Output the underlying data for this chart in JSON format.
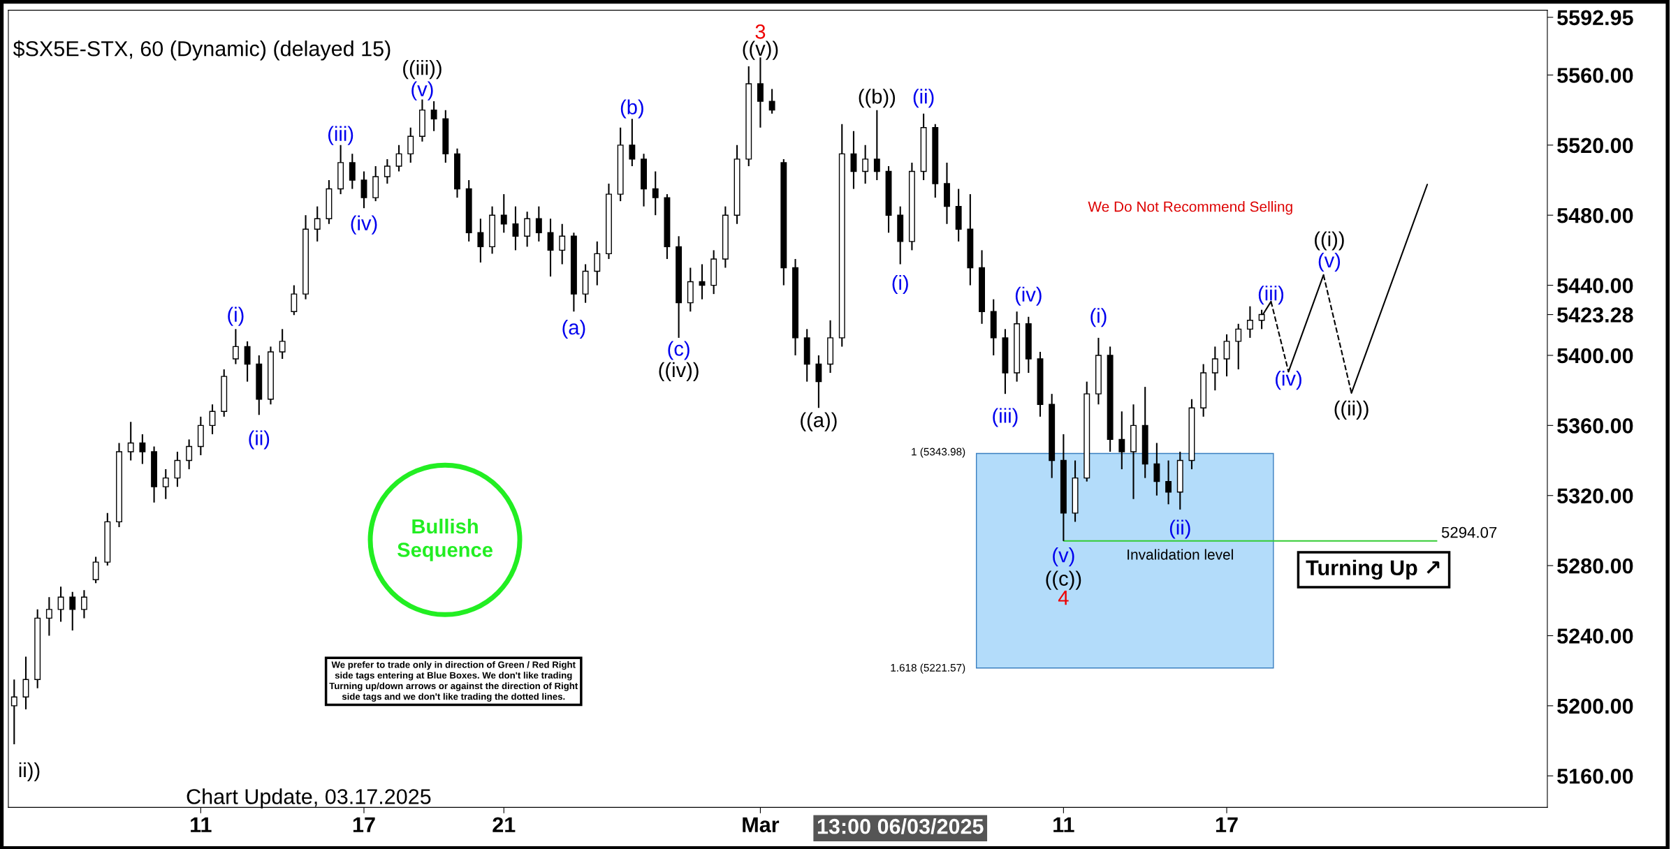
{
  "chart_data": {
    "type": "candlestick",
    "title": "$SX5E-STX, 60 (Dynamic) (delayed 15)",
    "categories": [
      null,
      null,
      null,
      null,
      null,
      null,
      null,
      null,
      null,
      null,
      null,
      null,
      null,
      null,
      null,
      null,
      "11",
      null,
      null,
      null,
      null,
      null,
      null,
      null,
      null,
      null,
      null,
      null,
      null,
      null,
      "17",
      null,
      null,
      null,
      null,
      null,
      null,
      null,
      null,
      null,
      null,
      null,
      "21",
      null,
      null,
      null,
      null,
      null,
      null,
      null,
      null,
      null,
      null,
      null,
      null,
      null,
      null,
      null,
      null,
      null,
      null,
      null,
      null,
      null,
      "Mar",
      null,
      null,
      null,
      null,
      null,
      null,
      null,
      null,
      null,
      null,
      null,
      null,
      null,
      null,
      null,
      null,
      null,
      null,
      null,
      null,
      null,
      null,
      null,
      null,
      null,
      "11",
      null,
      null,
      null,
      null,
      null,
      null,
      null,
      null,
      null,
      null,
      null,
      null,
      null,
      "17",
      null,
      null,
      null,
      null,
      null,
      null,
      null,
      null,
      null,
      null,
      null,
      null,
      null,
      null,
      null,
      null,
      null,
      null,
      null,
      null,
      null,
      null,
      null,
      null,
      null,
      null,
      null
    ],
    "ohlc": [
      [
        5200,
        5215,
        5178,
        5205
      ],
      [
        5205,
        5228,
        5198,
        5215
      ],
      [
        5215,
        5255,
        5210,
        5250
      ],
      [
        5250,
        5262,
        5240,
        5255
      ],
      [
        5255,
        5268,
        5248,
        5262
      ],
      [
        5262,
        5265,
        5243,
        5255
      ],
      [
        5255,
        5266,
        5250,
        5262
      ],
      [
        5272,
        5285,
        5270,
        5282
      ],
      [
        5282,
        5310,
        5280,
        5305
      ],
      [
        5305,
        5350,
        5302,
        5345
      ],
      [
        5345,
        5362,
        5340,
        5350
      ],
      [
        5350,
        5355,
        5338,
        5345
      ],
      [
        5345,
        5348,
        5316,
        5325
      ],
      [
        5325,
        5335,
        5318,
        5330
      ],
      [
        5330,
        5345,
        5325,
        5340
      ],
      [
        5340,
        5352,
        5335,
        5348
      ],
      [
        5348,
        5365,
        5343,
        5360
      ],
      [
        5360,
        5372,
        5355,
        5368
      ],
      [
        5368,
        5392,
        5365,
        5388
      ],
      [
        5398,
        5415,
        5395,
        5405
      ],
      [
        5405,
        5408,
        5385,
        5395
      ],
      [
        5395,
        5400,
        5366,
        5375
      ],
      [
        5375,
        5405,
        5372,
        5402
      ],
      [
        5402,
        5415,
        5398,
        5408
      ],
      [
        5425,
        5440,
        5423,
        5435
      ],
      [
        5435,
        5480,
        5432,
        5472
      ],
      [
        5472,
        5485,
        5465,
        5478
      ],
      [
        5478,
        5500,
        5475,
        5495
      ],
      [
        5495,
        5520,
        5492,
        5510
      ],
      [
        5510,
        5515,
        5495,
        5500
      ],
      [
        5500,
        5505,
        5484,
        5490
      ],
      [
        5490,
        5508,
        5488,
        5502
      ],
      [
        5502,
        5512,
        5498,
        5508
      ],
      [
        5508,
        5520,
        5505,
        5515
      ],
      [
        5515,
        5530,
        5510,
        5525
      ],
      [
        5525,
        5546,
        5522,
        5540
      ],
      [
        5540,
        5545,
        5528,
        5535
      ],
      [
        5535,
        5540,
        5510,
        5515
      ],
      [
        5515,
        5518,
        5490,
        5495
      ],
      [
        5495,
        5500,
        5465,
        5470
      ],
      [
        5470,
        5478,
        5453,
        5462
      ],
      [
        5462,
        5485,
        5458,
        5480
      ],
      [
        5480,
        5492,
        5470,
        5475
      ],
      [
        5475,
        5485,
        5460,
        5468
      ],
      [
        5468,
        5482,
        5462,
        5478
      ],
      [
        5478,
        5485,
        5465,
        5470
      ],
      [
        5470,
        5478,
        5445,
        5460
      ],
      [
        5460,
        5475,
        5452,
        5468
      ],
      [
        5468,
        5470,
        5425,
        5435
      ],
      [
        5435,
        5452,
        5430,
        5448
      ],
      [
        5448,
        5465,
        5440,
        5458
      ],
      [
        5458,
        5498,
        5455,
        5492
      ],
      [
        5492,
        5530,
        5488,
        5520
      ],
      [
        5520,
        5535,
        5508,
        5512
      ],
      [
        5512,
        5515,
        5485,
        5495
      ],
      [
        5495,
        5505,
        5480,
        5490
      ],
      [
        5490,
        5492,
        5455,
        5462
      ],
      [
        5462,
        5468,
        5410,
        5430
      ],
      [
        5430,
        5450,
        5425,
        5442
      ],
      [
        5442,
        5452,
        5432,
        5440
      ],
      [
        5440,
        5460,
        5435,
        5455
      ],
      [
        5455,
        5485,
        5450,
        5480
      ],
      [
        5480,
        5520,
        5475,
        5512
      ],
      [
        5512,
        5565,
        5508,
        5555
      ],
      [
        5555,
        5570,
        5530,
        5545
      ],
      [
        5545,
        5552,
        5538,
        5540
      ],
      [
        5510,
        5512,
        5440,
        5450
      ],
      [
        5450,
        5455,
        5400,
        5410
      ],
      [
        5410,
        5415,
        5385,
        5395
      ],
      [
        5395,
        5400,
        5370,
        5385
      ],
      [
        5395,
        5420,
        5390,
        5410
      ],
      [
        5410,
        5532,
        5405,
        5515
      ],
      [
        5515,
        5528,
        5495,
        5505
      ],
      [
        5505,
        5520,
        5498,
        5512
      ],
      [
        5512,
        5540,
        5500,
        5505
      ],
      [
        5505,
        5508,
        5470,
        5480
      ],
      [
        5480,
        5485,
        5452,
        5465
      ],
      [
        5465,
        5510,
        5460,
        5505
      ],
      [
        5505,
        5538,
        5500,
        5530
      ],
      [
        5530,
        5532,
        5490,
        5498
      ],
      [
        5498,
        5510,
        5475,
        5485
      ],
      [
        5485,
        5495,
        5465,
        5472
      ],
      [
        5472,
        5492,
        5440,
        5450
      ],
      [
        5450,
        5460,
        5418,
        5425
      ],
      [
        5425,
        5432,
        5400,
        5410
      ],
      [
        5410,
        5415,
        5378,
        5390
      ],
      [
        5390,
        5425,
        5385,
        5418
      ],
      [
        5418,
        5422,
        5390,
        5398
      ],
      [
        5398,
        5402,
        5365,
        5372
      ],
      [
        5372,
        5378,
        5330,
        5340
      ],
      [
        5340,
        5355,
        5294.07,
        5310
      ],
      [
        5310,
        5340,
        5305,
        5330
      ],
      [
        5330,
        5385,
        5328,
        5378
      ],
      [
        5378,
        5410,
        5372,
        5400
      ],
      [
        5400,
        5405,
        5345,
        5352
      ],
      [
        5352,
        5368,
        5335,
        5345
      ],
      [
        5345,
        5372,
        5318,
        5360
      ],
      [
        5360,
        5382,
        5330,
        5338
      ],
      [
        5338,
        5350,
        5320,
        5328
      ],
      [
        5328,
        5340,
        5315,
        5322
      ],
      [
        5322,
        5345,
        5312,
        5340
      ],
      [
        5340,
        5375,
        5335,
        5370
      ],
      [
        5370,
        5395,
        5365,
        5390
      ],
      [
        5390,
        5405,
        5380,
        5398
      ],
      [
        5398,
        5412,
        5388,
        5408
      ],
      [
        5408,
        5418,
        5392,
        5415
      ],
      [
        5415,
        5428,
        5410,
        5420
      ],
      [
        5420,
        5426,
        5415,
        5423.28
      ],
      null,
      null,
      null,
      null,
      null,
      null,
      null,
      null,
      null,
      null,
      null,
      null,
      null,
      null,
      null,
      null,
      null,
      null,
      null,
      null,
      null,
      null,
      null,
      null
    ],
    "color": "#000000",
    "ylim": [
      5142,
      5597
    ],
    "yticks": [
      {
        "value": 5160,
        "label": "5160.00"
      },
      {
        "value": 5200,
        "label": "5200.00"
      },
      {
        "value": 5240,
        "label": "5240.00"
      },
      {
        "value": 5280,
        "label": "5280.00"
      },
      {
        "value": 5320,
        "label": "5320.00"
      },
      {
        "value": 5360,
        "label": "5360.00"
      },
      {
        "value": 5400,
        "label": "5400.00"
      },
      {
        "value": 5440,
        "label": "5440.00"
      },
      {
        "value": 5480,
        "label": "5480.00"
      },
      {
        "value": 5520,
        "label": "5520.00"
      },
      {
        "value": 5560,
        "label": "5560.00"
      },
      {
        "value": 5423.28,
        "label": "5423.28"
      },
      {
        "value": 5592.95,
        "label": "5592.95"
      }
    ],
    "ref_lines": [
      {
        "axis": "y",
        "value": 5294.07,
        "label": "5294.07",
        "color": "#33cc33"
      }
    ],
    "bands": [
      {
        "axis": "y",
        "from": 5221.57,
        "to": 5343.98,
        "color": "#b3dcfa"
      }
    ],
    "annotations": [
      "(i)",
      "(ii)",
      "(iii)",
      "(iv)",
      "(v)",
      "(a)",
      "(b)",
      "(c)",
      "(i)",
      "(ii)",
      "(iii)",
      "(iv)",
      "(i)",
      "(v)",
      "(ii)",
      "(iii)",
      "(iv)",
      "(v)",
      "ii))",
      "((iii))",
      "((iv))",
      "((v))",
      "((a))",
      "((b))",
      "((c))",
      "((i))",
      "((ii))",
      "3",
      "4",
      "1 (5343.98)",
      "1.618 (5221.57)",
      "Invalidation level",
      "We Do Not Recommend Selling",
      "Bullish Sequence",
      "We prefer to trade only in direction of Green / Red Right\nside tags entering at Blue Boxes. We don't like trading\nTurning up/down arrows or against the direction of Right\nside tags and we don't like trading the dotted lines.",
      "Turning Up ↗",
      "Chart Update, 03.17.2025",
      "13:00 06/03/2025"
    ],
    "grid": false
  }
}
